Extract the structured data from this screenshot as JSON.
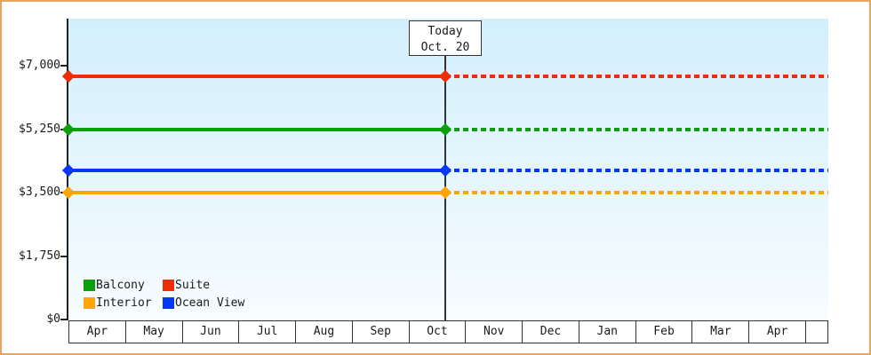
{
  "chart_data": {
    "type": "line",
    "description": "Cabin price tracker: horizontal price lines per cabin category, solid history up to today then dotted projection",
    "today_annotation": {
      "label": "Today",
      "date": "Oct. 20"
    },
    "today_month_index": 6,
    "today_fraction": 0.645,
    "x_months": [
      "Apr",
      "May",
      "Jun",
      "Jul",
      "Aug",
      "Sep",
      "Oct",
      "Nov",
      "Dec",
      "Jan",
      "Feb",
      "Mar",
      "Apr"
    ],
    "y_ticks": [
      {
        "label": "$0",
        "value": 0
      },
      {
        "label": "$1,750",
        "value": 1750
      },
      {
        "label": "$3,500",
        "value": 3500
      },
      {
        "label": "$5,250",
        "value": 5250
      },
      {
        "label": "$7,000",
        "value": 7000
      }
    ],
    "ylim": [
      0,
      8300
    ],
    "grid": false,
    "legend_position": "bottom-left-inside",
    "series": [
      {
        "name": "Suite",
        "value": 6700,
        "color": "#ee2c05"
      },
      {
        "name": "Balcony",
        "value": 5250,
        "color": "#0d9e0d"
      },
      {
        "name": "Ocean View",
        "value": 4100,
        "color": "#0636f6"
      },
      {
        "name": "Interior",
        "value": 3500,
        "color": "#ffa407"
      }
    ],
    "legend": [
      {
        "label": "Balcony",
        "color": "#0d9e0d"
      },
      {
        "label": "Suite",
        "color": "#ee2c05"
      },
      {
        "label": "Interior",
        "color": "#ffa407"
      },
      {
        "label": "Ocean View",
        "color": "#0636f6"
      }
    ]
  },
  "colors": {
    "frame_border": "#e9a45b",
    "plot_gradient_top": "#d2effb",
    "plot_gradient_bottom": "#f7fcff",
    "axis": "#222222",
    "annotation_border": "#333333",
    "text": "#1a1a1a"
  }
}
